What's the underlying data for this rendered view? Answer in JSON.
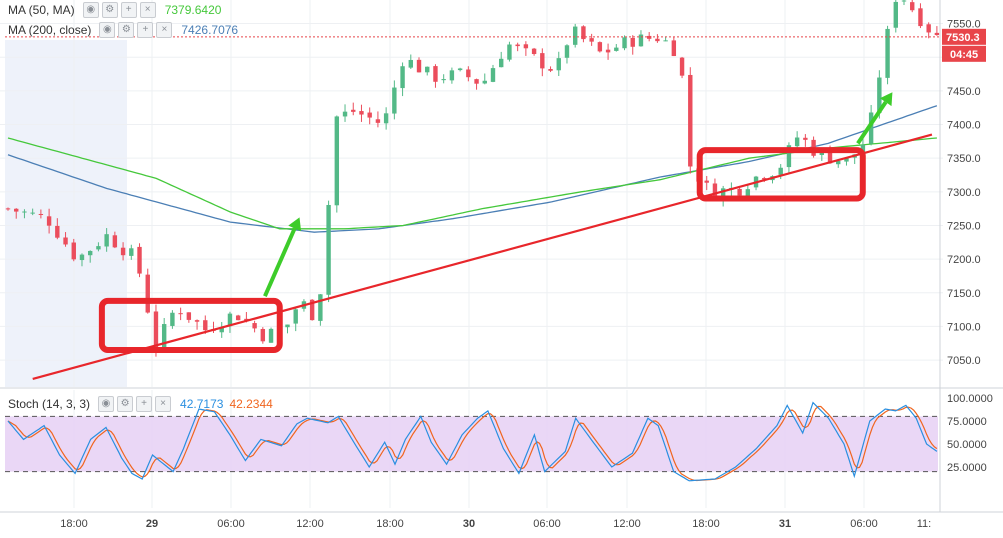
{
  "chart_data": {
    "type": "candlestick",
    "colors": {
      "up": "#53b987",
      "down": "#eb4d5c",
      "ma50": "#45c83b",
      "ma200": "#4b7fb5",
      "trendline": "#e8262b",
      "box": "#e8262b",
      "arrow": "#3dcc2a",
      "stoch_k": "#2a8fe0",
      "stoch_d": "#f0651f",
      "stoch_band": "#e6d0f5",
      "last_price_bg": "#e8454a"
    },
    "indicators": [
      {
        "name": "MA (50, MA)",
        "value": "7379.6420"
      },
      {
        "name": "MA (200, close)",
        "value": "7426.7076"
      }
    ],
    "price_axis": {
      "ylim": [
        7010,
        7585
      ],
      "ticks": [
        "7550.0",
        "7500.0",
        "7450.0",
        "7400.0",
        "7350.0",
        "7300.0",
        "7250.0",
        "7200.0",
        "7150.0",
        "7100.0",
        "7050.0"
      ]
    },
    "last_price": {
      "value": 7530.3,
      "label": "7530.3",
      "countdown": "04:45"
    },
    "time_axis": {
      "ticks": [
        "18:00",
        "29",
        "06:00",
        "12:00",
        "18:00",
        "30",
        "06:00",
        "12:00",
        "18:00",
        "31",
        "06:00",
        "11:"
      ]
    },
    "candles": {
      "count": 114,
      "anchors": [
        [
          0,
          7275
        ],
        [
          8,
          7260
        ],
        [
          14,
          7200
        ],
        [
          20,
          7235
        ],
        [
          26,
          7200
        ],
        [
          30,
          7070
        ],
        [
          34,
          7130
        ],
        [
          40,
          7095
        ],
        [
          46,
          7120
        ],
        [
          52,
          7085
        ],
        [
          57,
          7105
        ],
        [
          59,
          7140
        ],
        [
          62,
          7115
        ],
        [
          64,
          7180
        ],
        [
          66,
          7410
        ],
        [
          70,
          7420
        ],
        [
          76,
          7400
        ],
        [
          80,
          7500
        ],
        [
          86,
          7470
        ],
        [
          92,
          7475
        ],
        [
          96,
          7460
        ],
        [
          101,
          7520
        ],
        [
          106,
          7500
        ],
        [
          111,
          7480
        ],
        [
          114,
          7540
        ],
        [
          120,
          7505
        ],
        [
          126,
          7525
        ],
        [
          132,
          7530
        ],
        [
          136,
          7505
        ],
        [
          138,
          7340
        ],
        [
          142,
          7300
        ],
        [
          148,
          7305
        ],
        [
          152,
          7325
        ],
        [
          156,
          7335
        ],
        [
          160,
          7385
        ],
        [
          164,
          7355
        ],
        [
          170,
          7345
        ],
        [
          174,
          7380
        ],
        [
          177,
          7500
        ],
        [
          180,
          7600
        ],
        [
          186,
          7545
        ],
        [
          188,
          7530
        ]
      ]
    },
    "ma50": {
      "anchors": [
        [
          0,
          7380
        ],
        [
          30,
          7320
        ],
        [
          45,
          7270
        ],
        [
          55,
          7245
        ],
        [
          68,
          7245
        ],
        [
          80,
          7250
        ],
        [
          96,
          7275
        ],
        [
          116,
          7300
        ],
        [
          132,
          7318
        ],
        [
          150,
          7350
        ],
        [
          166,
          7365
        ],
        [
          188,
          7380
        ]
      ]
    },
    "ma200": {
      "anchors": [
        [
          0,
          7355
        ],
        [
          20,
          7305
        ],
        [
          45,
          7255
        ],
        [
          62,
          7240
        ],
        [
          75,
          7245
        ],
        [
          90,
          7260
        ],
        [
          110,
          7285
        ],
        [
          132,
          7322
        ],
        [
          150,
          7345
        ],
        [
          166,
          7372
        ],
        [
          188,
          7428
        ]
      ]
    },
    "trendline": {
      "start": [
        5,
        7022
      ],
      "end": [
        187,
        7385
      ]
    },
    "boxes": [
      {
        "x0": 19,
        "x1": 55,
        "y0": 7065,
        "y1": 7138
      },
      {
        "x0": 140,
        "x1": 173,
        "y0": 7290,
        "y1": 7362
      }
    ],
    "arrows": [
      {
        "from": [
          52,
          7145
        ],
        "to": [
          59,
          7262
        ]
      },
      {
        "from": [
          172,
          7372
        ],
        "to": [
          179,
          7448
        ]
      }
    ],
    "stochastic": {
      "name": "Stoch (14, 3, 3)",
      "k_value": "42.7173",
      "d_value": "42.2344",
      "ylim": [
        0,
        100
      ],
      "ticks": [
        "100.0000",
        "75.0000",
        "50.0000",
        "25.0000"
      ],
      "bands": [
        20,
        80
      ],
      "k_anchors": [
        [
          0,
          75
        ],
        [
          3,
          55
        ],
        [
          7,
          70
        ],
        [
          10,
          38
        ],
        [
          13,
          18
        ],
        [
          16,
          55
        ],
        [
          19,
          68
        ],
        [
          22,
          35
        ],
        [
          24,
          18
        ],
        [
          26,
          12
        ],
        [
          28,
          38
        ],
        [
          32,
          20
        ],
        [
          34,
          45
        ],
        [
          37,
          88
        ],
        [
          40,
          85
        ],
        [
          43,
          60
        ],
        [
          46,
          32
        ],
        [
          49,
          55
        ],
        [
          53,
          48
        ],
        [
          56,
          72
        ],
        [
          58,
          78
        ],
        [
          62,
          73
        ],
        [
          64,
          80
        ],
        [
          67,
          52
        ],
        [
          70,
          25
        ],
        [
          73,
          52
        ],
        [
          75,
          28
        ],
        [
          77,
          55
        ],
        [
          80,
          80
        ],
        [
          82,
          52
        ],
        [
          85,
          28
        ],
        [
          88,
          60
        ],
        [
          91,
          78
        ],
        [
          93,
          86
        ],
        [
          96,
          45
        ],
        [
          99,
          18
        ],
        [
          102,
          60
        ],
        [
          104,
          20
        ],
        [
          108,
          42
        ],
        [
          110,
          78
        ],
        [
          113,
          55
        ],
        [
          117,
          25
        ],
        [
          121,
          40
        ],
        [
          124,
          78
        ],
        [
          126,
          70
        ],
        [
          129,
          20
        ],
        [
          132,
          10
        ],
        [
          137,
          12
        ],
        [
          141,
          25
        ],
        [
          145,
          45
        ],
        [
          149,
          70
        ],
        [
          151,
          92
        ],
        [
          154,
          62
        ],
        [
          156,
          95
        ],
        [
          159,
          78
        ],
        [
          162,
          50
        ],
        [
          164,
          15
        ],
        [
          167,
          75
        ],
        [
          170,
          88
        ],
        [
          172,
          86
        ],
        [
          174,
          92
        ],
        [
          176,
          78
        ],
        [
          178,
          50
        ],
        [
          180,
          42
        ]
      ]
    }
  }
}
